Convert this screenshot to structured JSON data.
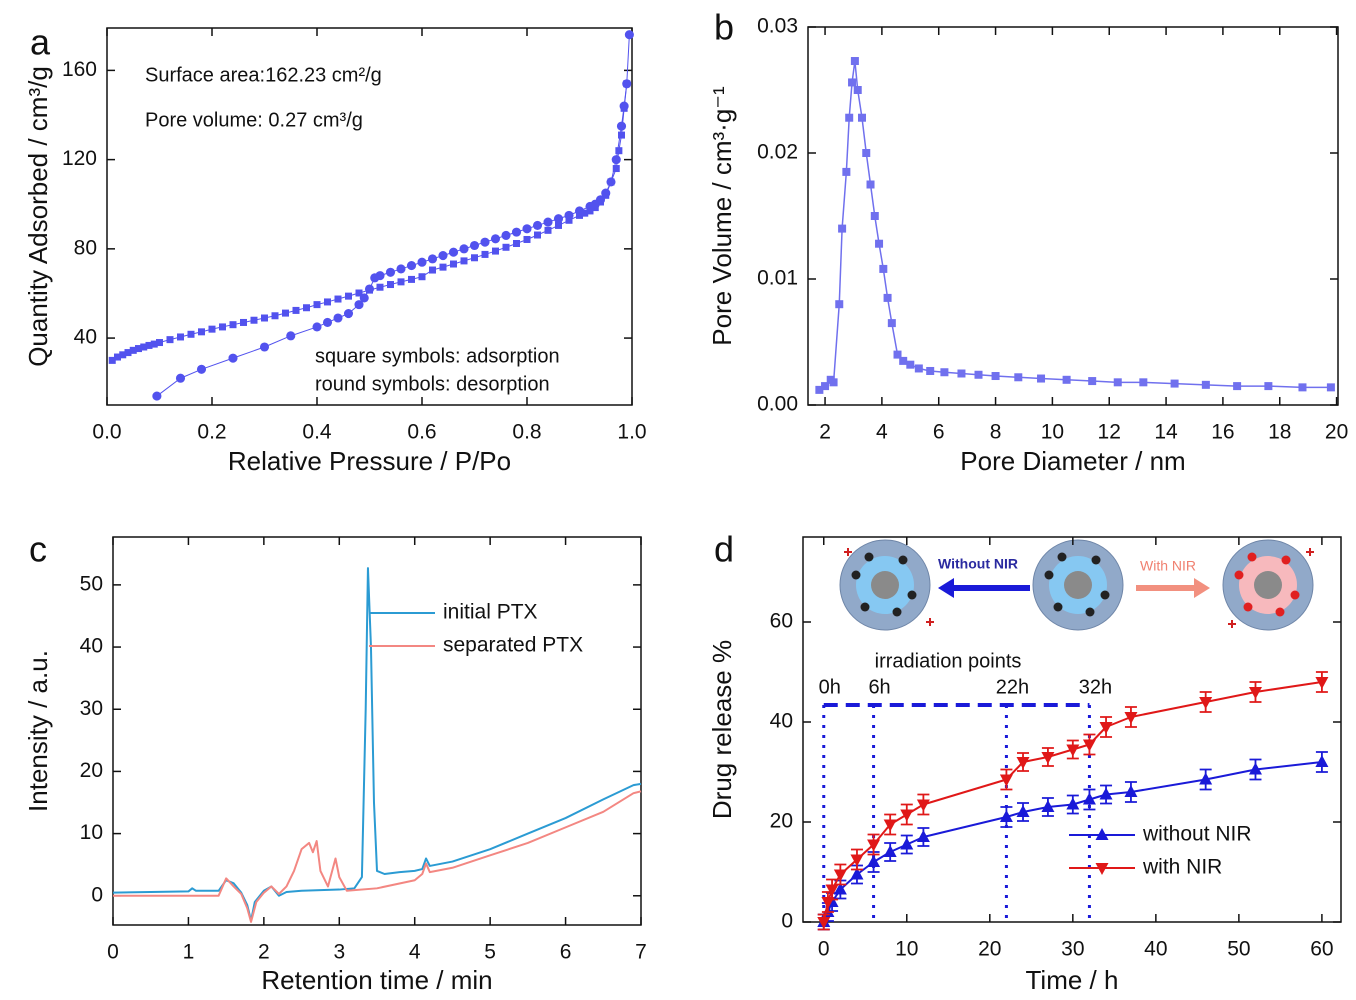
{
  "chart_data": [
    {
      "type": "line",
      "panel_label": "a",
      "x_label": "Relative Pressure / P/Po",
      "y_label": "Quantity Adsorbed / cm³/g",
      "annotations": [
        "Surface area:162.23 cm²/g",
        "Pore volume: 0.27 cm³/g",
        "square symbols: adsorption",
        "round symbols: desorption"
      ],
      "xlim": [
        0,
        1.0
      ],
      "xticks": [
        {
          "value": 0,
          "label": "0.0"
        },
        0.2,
        0.4,
        0.6,
        0.8,
        {
          "value": 1,
          "label": "1.0"
        }
      ],
      "ylim": [
        10,
        179
      ],
      "yticks": [
        40,
        80,
        120,
        160
      ],
      "series": [
        {
          "color": "#5252ee",
          "marker": "square",
          "x": [
            0.01,
            0.02,
            0.03,
            0.04,
            0.05,
            0.06,
            0.07,
            0.08,
            0.09,
            0.1,
            0.12,
            0.14,
            0.16,
            0.18,
            0.2,
            0.22,
            0.24,
            0.26,
            0.28,
            0.3,
            0.32,
            0.34,
            0.36,
            0.38,
            0.4,
            0.42,
            0.44,
            0.46,
            0.48,
            0.5,
            0.52,
            0.54,
            0.56,
            0.58,
            0.6,
            0.62,
            0.64,
            0.66,
            0.68,
            0.7,
            0.72,
            0.74,
            0.76,
            0.78,
            0.8,
            0.82,
            0.84,
            0.86,
            0.88,
            0.9,
            0.91,
            0.92,
            0.93,
            0.94,
            0.95,
            0.96,
            0.97,
            0.975,
            0.98,
            0.985,
            0.99
          ],
          "values": [
            30,
            31.5,
            32.5,
            33.5,
            34.5,
            35.3,
            36,
            36.7,
            37.3,
            38,
            39.3,
            40.5,
            41.7,
            42.8,
            44,
            45,
            46,
            47,
            48,
            49,
            50,
            51.2,
            52.4,
            53.6,
            55,
            56.2,
            57.5,
            58.8,
            60.2,
            61.5,
            62.8,
            64,
            65.2,
            66.3,
            67.5,
            70.5,
            71.8,
            73.2,
            74.6,
            76,
            77.5,
            79,
            80.7,
            82.4,
            84.2,
            86.2,
            88.3,
            90.5,
            92.8,
            95,
            96,
            97,
            98.5,
            101,
            104,
            110,
            116,
            124,
            131,
            143,
            154
          ]
        },
        {
          "color": "#5252ee",
          "marker": "circle",
          "x": [
            0.995,
            0.99,
            0.985,
            0.98,
            0.97,
            0.96,
            0.95,
            0.94,
            0.93,
            0.92,
            0.9,
            0.88,
            0.86,
            0.84,
            0.82,
            0.8,
            0.78,
            0.76,
            0.74,
            0.72,
            0.7,
            0.68,
            0.66,
            0.64,
            0.62,
            0.6,
            0.58,
            0.56,
            0.54,
            0.52,
            0.51,
            0.5,
            0.49,
            0.48,
            0.46,
            0.44,
            0.42,
            0.4,
            0.35,
            0.3,
            0.24,
            0.18,
            0.14,
            0.095
          ],
          "values": [
            176,
            154,
            144,
            135,
            120,
            110,
            105,
            102,
            100,
            99,
            97,
            95,
            93.5,
            92,
            90.5,
            89,
            87.5,
            86,
            84.5,
            83,
            81.5,
            80,
            78.5,
            77,
            75.5,
            74,
            72.5,
            71,
            69.5,
            68,
            67,
            62,
            58,
            55,
            51,
            49,
            47,
            45,
            41,
            36,
            31,
            26,
            22,
            14
          ]
        }
      ]
    },
    {
      "type": "line",
      "panel_label": "b",
      "x_label": "Pore Diameter / nm",
      "y_label": "Pore Volume / cm³·g⁻¹",
      "xlim": [
        1.4,
        20.05
      ],
      "xticks": [
        2,
        4,
        6,
        8,
        10,
        12,
        14,
        16,
        18,
        20
      ],
      "ylim": [
        0,
        0.03
      ],
      "yticks": [
        {
          "value": 0,
          "label": "0.00"
        },
        0.01,
        0.02,
        0.03
      ],
      "series": [
        {
          "color": "#7070ee",
          "marker": "square",
          "x": [
            1.8,
            2.0,
            2.2,
            2.3,
            2.5,
            2.6,
            2.75,
            2.85,
            2.95,
            3.05,
            3.15,
            3.3,
            3.45,
            3.6,
            3.75,
            3.9,
            4.05,
            4.2,
            4.35,
            4.55,
            4.75,
            5.0,
            5.3,
            5.7,
            6.2,
            6.8,
            7.4,
            8.0,
            8.8,
            9.6,
            10.5,
            11.4,
            12.3,
            13.2,
            14.3,
            15.4,
            16.5,
            17.6,
            18.8,
            19.8
          ],
          "values": [
            0.0012,
            0.0015,
            0.002,
            0.0018,
            0.008,
            0.014,
            0.0185,
            0.0228,
            0.0256,
            0.0273,
            0.025,
            0.0228,
            0.02,
            0.0175,
            0.015,
            0.0128,
            0.0108,
            0.0085,
            0.0065,
            0.004,
            0.0035,
            0.0032,
            0.0029,
            0.0027,
            0.0026,
            0.0025,
            0.0024,
            0.0023,
            0.0022,
            0.0021,
            0.002,
            0.0019,
            0.0018,
            0.0018,
            0.0017,
            0.0016,
            0.0015,
            0.0015,
            0.0014,
            0.0014
          ]
        }
      ]
    },
    {
      "type": "line",
      "panel_label": "c",
      "x_label": "Retention time / min",
      "y_label": "Intensity / a.u.",
      "xlim": [
        0,
        7
      ],
      "xticks": [
        0,
        1,
        2,
        3,
        4,
        5,
        6,
        7
      ],
      "ylim": [
        -4.7,
        57.7
      ],
      "yticks": [
        0,
        10,
        20,
        30,
        40,
        50
      ],
      "legend": "upper right",
      "series": [
        {
          "name": "initial PTX",
          "color": "#2b9bd3",
          "x": [
            0,
            0.5,
            1.0,
            1.05,
            1.1,
            1.4,
            1.5,
            1.6,
            1.7,
            1.78,
            1.83,
            1.88,
            2.0,
            2.1,
            2.2,
            2.3,
            2.5,
            3.0,
            3.2,
            3.3,
            3.35,
            3.38,
            3.42,
            3.46,
            3.5,
            3.6,
            3.8,
            4.0,
            4.1,
            4.15,
            4.2,
            4.5,
            5.0,
            5.5,
            6.0,
            6.5,
            6.9,
            7.0
          ],
          "values": [
            0.5,
            0.6,
            0.7,
            1.2,
            0.8,
            0.8,
            2.5,
            2.0,
            0.5,
            -1.5,
            -4,
            -1,
            0.8,
            1.5,
            0,
            0.6,
            0.8,
            1.0,
            1.2,
            3,
            30,
            52.7,
            40,
            15,
            4,
            3.5,
            3.8,
            4.0,
            4.3,
            6,
            4.8,
            5.5,
            7.5,
            10,
            12.5,
            15.5,
            17.8,
            18
          ]
        },
        {
          "name": "separated PTX",
          "color": "#f38782",
          "x": [
            0,
            1.0,
            1.4,
            1.5,
            1.6,
            1.7,
            1.78,
            1.83,
            1.9,
            2.0,
            2.1,
            2.2,
            2.3,
            2.4,
            2.5,
            2.6,
            2.65,
            2.7,
            2.75,
            2.85,
            2.95,
            3.0,
            3.1,
            3.5,
            4.0,
            4.1,
            4.15,
            4.2,
            4.5,
            5.0,
            5.5,
            6.0,
            6.5,
            6.9,
            7.0
          ],
          "values": [
            0,
            0,
            0,
            2.8,
            1.5,
            0.3,
            -2,
            -4.2,
            -1,
            0.5,
            1.5,
            0.3,
            1.5,
            4,
            7.5,
            8.5,
            7,
            8.8,
            4,
            1.5,
            6,
            3,
            0.8,
            1.2,
            2.5,
            3.5,
            5.2,
            3.8,
            4.5,
            6.5,
            8.5,
            11,
            13.5,
            16.5,
            16.8
          ]
        }
      ]
    },
    {
      "type": "line",
      "panel_label": "d",
      "x_label": "Time / h",
      "y_label": "Drug release %",
      "irradiation_title": "irradiation points",
      "irradiation_points": [
        {
          "value": 0,
          "label": "0h"
        },
        {
          "value": 6,
          "label": "6h"
        },
        {
          "value": 22,
          "label": "22h"
        },
        {
          "value": 32,
          "label": "32h"
        }
      ],
      "schematic_labels": [
        "Without NIR",
        "With NIR"
      ],
      "xlim": [
        -2.5,
        62.3
      ],
      "xticks": [
        0,
        10,
        20,
        30,
        40,
        50,
        60
      ],
      "ylim": [
        0,
        77
      ],
      "yticks": [
        0,
        20,
        40,
        60
      ],
      "legend": "lower right",
      "series": [
        {
          "name": "without NIR",
          "color": "#1a1ad8",
          "marker": "triangle-up",
          "x": [
            0,
            0.5,
            1,
            2,
            4,
            6,
            8,
            10,
            12,
            22,
            24,
            27,
            30,
            32,
            34,
            37,
            46,
            52,
            60
          ],
          "values": [
            0,
            2,
            4,
            6.5,
            9.5,
            12,
            14,
            15.5,
            17,
            21,
            22,
            23,
            23.5,
            24.5,
            25.5,
            26,
            28.5,
            30.5,
            32
          ],
          "errors": [
            1.5,
            1.8,
            1.8,
            1.8,
            1.8,
            2,
            1.8,
            1.8,
            1.8,
            2,
            1.8,
            1.8,
            1.8,
            2,
            1.8,
            2,
            2,
            2,
            2
          ]
        },
        {
          "name": "with NIR",
          "color": "#e01818",
          "marker": "triangle-down",
          "x": [
            0,
            0.5,
            1,
            2,
            4,
            6,
            8,
            10,
            12,
            22,
            24,
            27,
            30,
            32,
            34,
            37,
            46,
            52,
            60
          ],
          "values": [
            0,
            4,
            6.5,
            9.5,
            12.5,
            15.5,
            19.5,
            21.5,
            23.5,
            28.5,
            32,
            33,
            34.5,
            35.5,
            39,
            41,
            44,
            46,
            48
          ],
          "errors": [
            1.5,
            2,
            2,
            2,
            2,
            2,
            2,
            2,
            2,
            2,
            1.8,
            1.8,
            1.8,
            2,
            2,
            2,
            2,
            2,
            2
          ]
        }
      ]
    }
  ]
}
